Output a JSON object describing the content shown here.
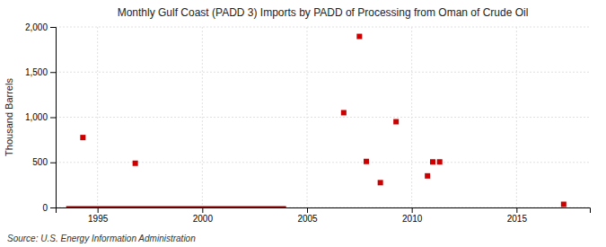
{
  "chart_data": {
    "type": "scatter",
    "title": "Monthly Gulf Coast (PADD 3) Imports by PADD of Processing from Oman of Crude Oil",
    "ylabel": "Thousand Barrels",
    "annotation": "Source: U.S. Energy Information Administration",
    "xlim": [
      1993.0,
      2018.5
    ],
    "ylim": [
      0,
      2000
    ],
    "xticks": [
      1995,
      2000,
      2005,
      2010,
      2015
    ],
    "yticks": [
      0,
      500,
      {
        "value": 1000,
        "label": "1,000"
      },
      {
        "value": 1500,
        "label": "1,500"
      },
      {
        "value": 2000,
        "label": "2,000"
      }
    ],
    "grid": true,
    "series": [
      {
        "type": "line",
        "color": "#8b0000",
        "line_style": "solid",
        "x": [
          1993.5,
          2004.0
        ],
        "values": [
          0,
          0
        ]
      },
      {
        "type": "scatter",
        "color": "#cc0000",
        "marker": "square",
        "x": [
          1994.3,
          1996.8,
          2006.75,
          2007.5,
          2007.83,
          2008.5,
          2009.25,
          2010.75,
          2011.0,
          2011.33,
          2017.25
        ],
        "values": [
          775,
          490,
          1050,
          1895,
          510,
          275,
          950,
          350,
          505,
          505,
          35
        ]
      }
    ]
  }
}
